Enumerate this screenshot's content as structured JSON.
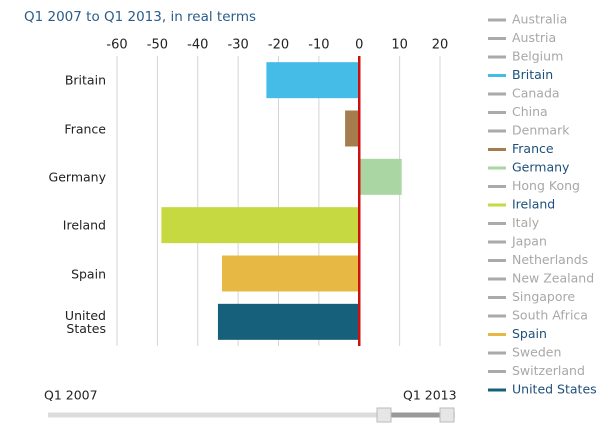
{
  "chart_data": {
    "type": "bar",
    "orientation": "horizontal",
    "title": "Q1 2007 to Q1 2013, in real terms",
    "categories": [
      "Britain",
      "France",
      "Germany",
      "Ireland",
      "Spain",
      "United States"
    ],
    "values": [
      -23,
      -3.5,
      10.5,
      -49,
      -34,
      -35
    ],
    "colors": [
      "#45bce8",
      "#a47c4e",
      "#a9d6a2",
      "#c6d940",
      "#e8b845",
      "#17607c"
    ],
    "xlim": [
      -60,
      20
    ],
    "xticks": [
      -60,
      -50,
      -40,
      -30,
      -20,
      -10,
      0,
      10,
      20
    ],
    "grid": true,
    "zero_line_color": "#d01010",
    "legend": [
      {
        "name": "Australia",
        "color": "#aaaaaa"
      },
      {
        "name": "Austria",
        "color": "#aaaaaa"
      },
      {
        "name": "Belgium",
        "color": "#aaaaaa"
      },
      {
        "name": "Britain",
        "color": "#45bce8"
      },
      {
        "name": "Canada",
        "color": "#aaaaaa"
      },
      {
        "name": "China",
        "color": "#aaaaaa"
      },
      {
        "name": "Denmark",
        "color": "#aaaaaa"
      },
      {
        "name": "France",
        "color": "#a47c4e"
      },
      {
        "name": "Germany",
        "color": "#a9d6a2"
      },
      {
        "name": "Hong Kong",
        "color": "#aaaaaa"
      },
      {
        "name": "Ireland",
        "color": "#c6d940"
      },
      {
        "name": "Italy",
        "color": "#aaaaaa"
      },
      {
        "name": "Japan",
        "color": "#aaaaaa"
      },
      {
        "name": "Netherlands",
        "color": "#aaaaaa"
      },
      {
        "name": "New Zealand",
        "color": "#aaaaaa"
      },
      {
        "name": "Singapore",
        "color": "#aaaaaa"
      },
      {
        "name": "South Africa",
        "color": "#aaaaaa"
      },
      {
        "name": "Spain",
        "color": "#e8b845"
      },
      {
        "name": "Sweden",
        "color": "#aaaaaa"
      },
      {
        "name": "Switzerland",
        "color": "#aaaaaa"
      },
      {
        "name": "United States",
        "color": "#17607c"
      }
    ],
    "slider": {
      "start": "Q1 2007",
      "end": "Q1 2013"
    }
  }
}
